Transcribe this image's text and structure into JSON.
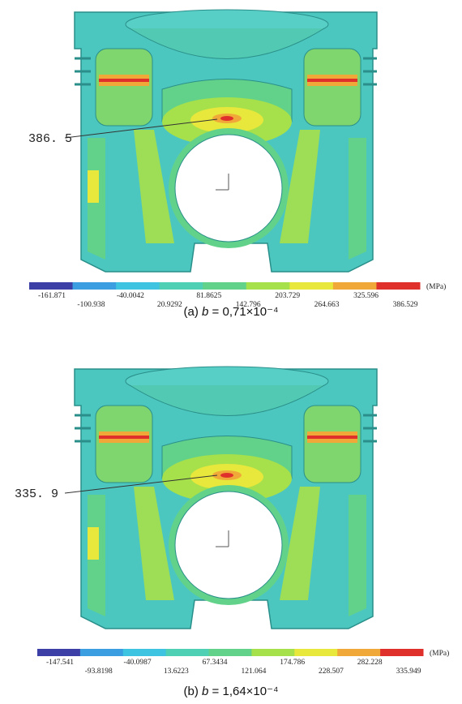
{
  "figure": {
    "panels": [
      {
        "callout": "386. 5",
        "legend": {
          "unit": "(MPa)",
          "colors": [
            "#3b3fa6",
            "#3a9ee0",
            "#3ec3e0",
            "#4fd0b4",
            "#62d28a",
            "#a6e04a",
            "#e8e83c",
            "#f0a838",
            "#e0302c"
          ],
          "labels": [
            "-161.871",
            "-100.938",
            "-40.0042",
            "20.9292",
            "81.8625",
            "142.796",
            "203.729",
            "264.663",
            "325.596",
            "386.529"
          ]
        },
        "caption": {
          "label": "(a)",
          "variable": "b",
          "text": "= 0,71×10⁻⁴"
        }
      },
      {
        "callout": "335. 9",
        "legend": {
          "unit": "(MPa)",
          "colors": [
            "#3b3fa6",
            "#3a9ee0",
            "#3ec3e0",
            "#4fd0b4",
            "#62d28a",
            "#a6e04a",
            "#e8e83c",
            "#f0a838",
            "#e0302c"
          ],
          "labels": [
            "-147.541",
            "-93.8198",
            "-40.0987",
            "13.6223",
            "67.3434",
            "121.064",
            "174.786",
            "228.507",
            "282.228",
            "335.949"
          ]
        },
        "caption": {
          "label": "(b)",
          "variable": "b",
          "text": "= 1,64×10⁻⁴"
        }
      }
    ]
  }
}
